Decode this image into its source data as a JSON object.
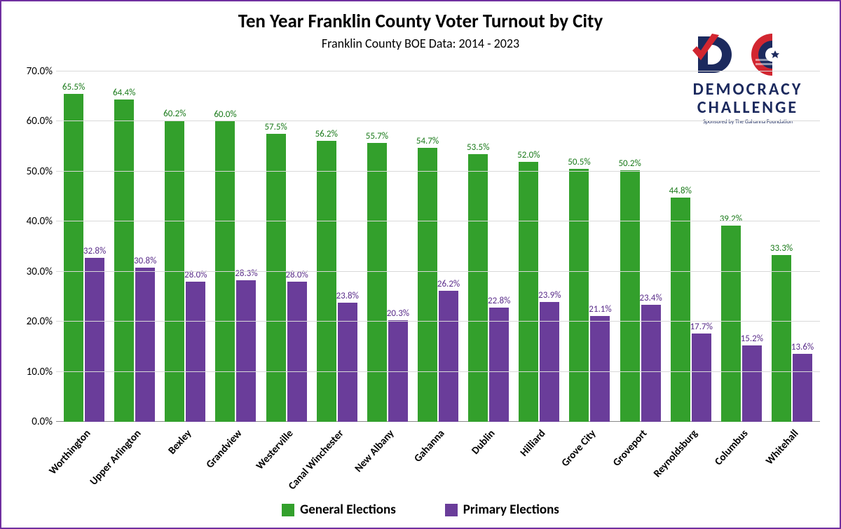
{
  "title": "Ten Year Franklin County Voter Turnout by City",
  "subtitle": "Franklin County BOE Data:  2014 - 2023",
  "logo": {
    "line1": "DEMOCRACY",
    "line2": "CHALLENGE",
    "sponsor": "Sponsored by The Gahanna Foundation",
    "colors": {
      "navy": "#1c2a5e",
      "red": "#d22630",
      "white": "#ffffff"
    }
  },
  "chart": {
    "type": "grouped-bar",
    "background_color": "#ffffff",
    "border_color": "#7030a0",
    "grid_color": "#d9d9d9",
    "ylim": [
      0,
      70
    ],
    "ytick_step": 10,
    "ytick_format_suffix": ".0%",
    "title_fontsize": 27,
    "subtitle_fontsize": 18,
    "axis_fontsize": 15,
    "datalabel_fontsize": 13,
    "xlabel_fontsize": 15,
    "legend_fontsize": 19,
    "xlabel_rotation_deg": -48,
    "series": [
      {
        "key": "general",
        "label": "General Elections",
        "color": "#33a02c",
        "label_color": "#1a7a1a"
      },
      {
        "key": "primary",
        "label": "Primary Elections",
        "color": "#6a3d9a",
        "label_color": "#5a2d8a"
      }
    ],
    "categories": [
      "Worthington",
      "Upper Arlington",
      "Bexley",
      "Grandview",
      "Westerville",
      "Canal Winchester",
      "New Albany",
      "Gahanna",
      "Dublin",
      "Hilliard",
      "Grove City",
      "Groveport",
      "Reynoldsburg",
      "Columbus",
      "Whitehall"
    ],
    "values": {
      "general": [
        65.5,
        64.4,
        60.2,
        60.0,
        57.5,
        56.2,
        55.7,
        54.7,
        53.5,
        52.0,
        50.5,
        50.2,
        44.8,
        39.2,
        33.3
      ],
      "primary": [
        32.8,
        30.8,
        28.0,
        28.3,
        28.0,
        23.8,
        20.3,
        26.2,
        22.8,
        23.9,
        21.1,
        23.4,
        17.7,
        15.2,
        13.6
      ]
    }
  }
}
